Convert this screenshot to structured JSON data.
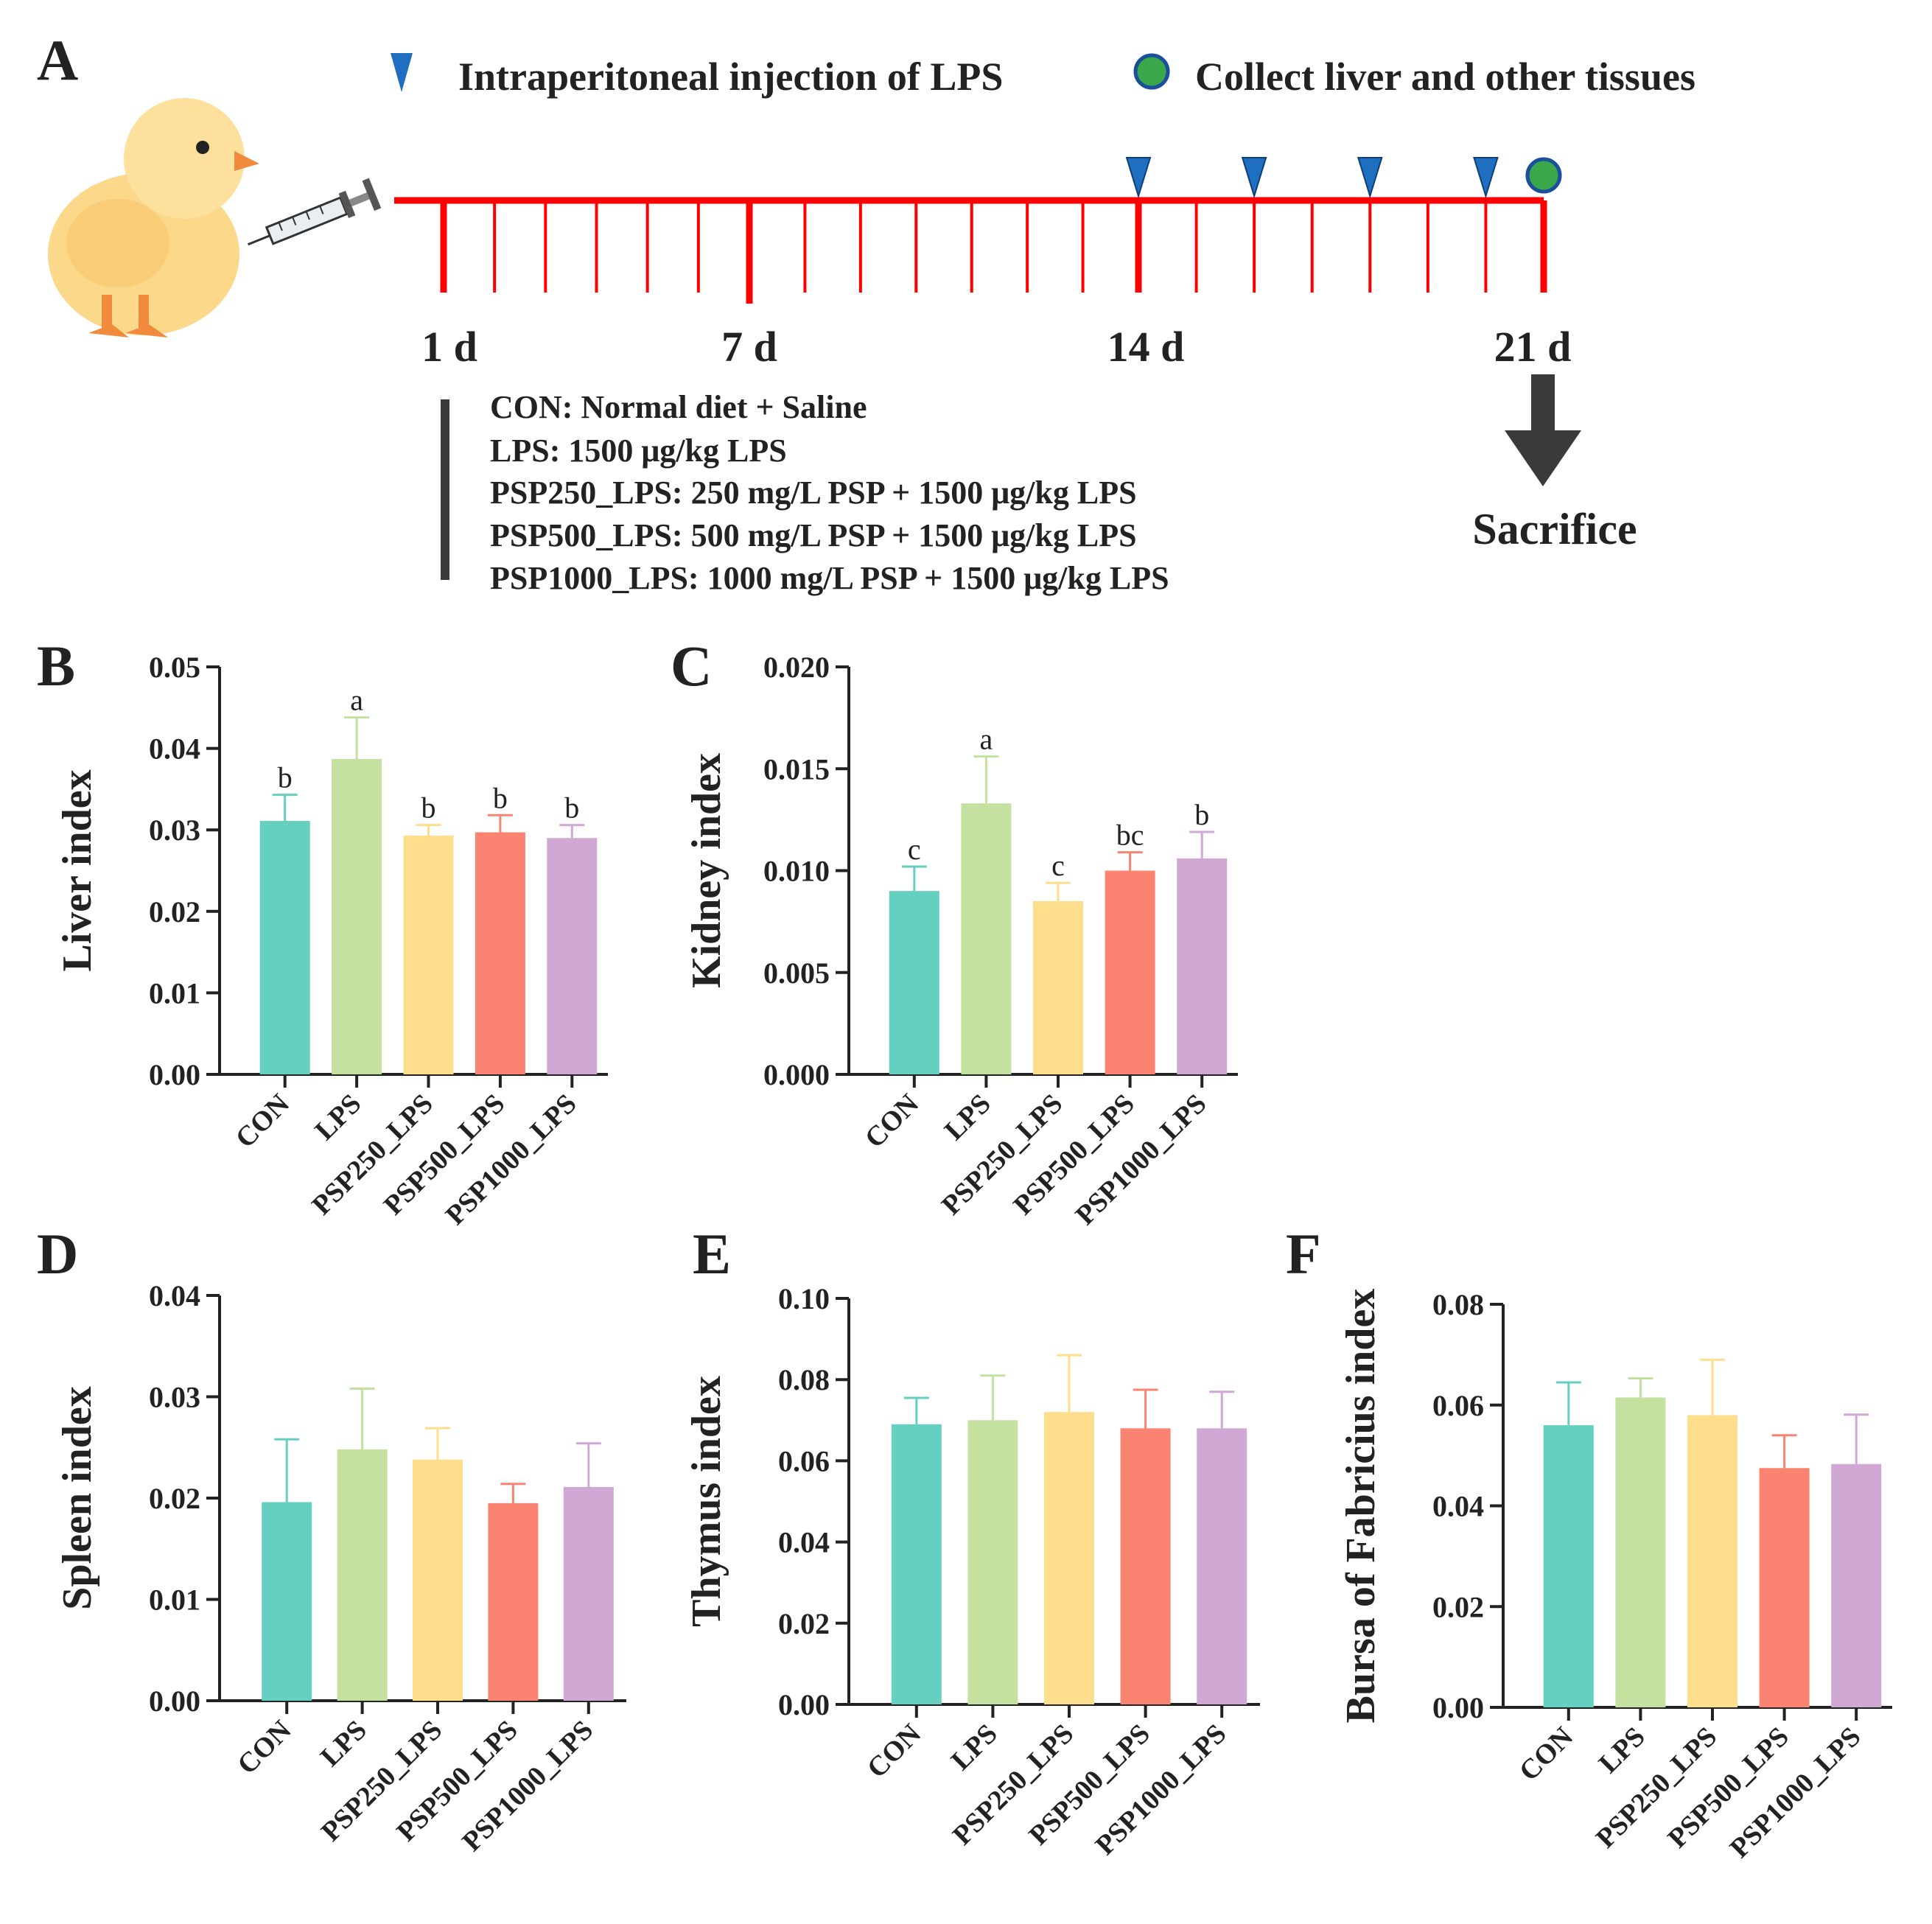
{
  "panel_a": {
    "label": "A",
    "legend": {
      "injection": "Intraperitoneal injection of LPS",
      "collect": "Collect liver and other tissues",
      "injection_icon": "blue-triangle-marker-icon",
      "collect_icon": "green-circle-marker-icon"
    },
    "timeline": {
      "day_labels": [
        "1 d",
        "7 d",
        "14 d",
        "21 d"
      ],
      "major_days": [
        1,
        7,
        14,
        21
      ],
      "start_day": 1,
      "end_day": 21,
      "injection_days": [
        14,
        16,
        18,
        20
      ],
      "collect_day": 21,
      "sacrifice_label": "Sacrifice"
    },
    "groups": [
      "CON: Normal diet + Saline",
      "LPS: 1500 μg/kg LPS",
      "PSP250_LPS: 250 mg/L PSP + 1500 μg/kg LPS",
      "PSP500_LPS: 500 mg/L PSP + 1500 μg/kg LPS",
      "PSP1000_LPS: 1000 mg/L PSP + 1500 μg/kg LPS"
    ],
    "icons": {
      "animal": "chick-icon",
      "tool": "syringe-icon"
    }
  },
  "colors": {
    "timeline": "#ff0000",
    "injection_marker": "#1f6fc0",
    "collect_marker": "#3aa84a",
    "arrow": "#3a3a3a",
    "text": "#222222",
    "bars": [
      "#65cfc0",
      "#c4e19f",
      "#fedd8d",
      "#fb8372",
      "#cfa9d3"
    ]
  },
  "chart_data": [
    {
      "id": "B",
      "type": "bar",
      "title": "",
      "xlabel": "",
      "ylabel": "Liver index",
      "categories": [
        "CON",
        "LPS",
        "PSP250_LPS",
        "PSP500_LPS",
        "PSP1000_LPS"
      ],
      "values": [
        0.0311,
        0.0387,
        0.0293,
        0.0297,
        0.029
      ],
      "errors": [
        0.0032,
        0.0051,
        0.0013,
        0.0021,
        0.0016
      ],
      "significance": [
        "b",
        "a",
        "b",
        "b",
        "b"
      ],
      "ylim": [
        0,
        0.05
      ],
      "yticks": [
        "0.00",
        "0.01",
        "0.02",
        "0.03",
        "0.04",
        "0.05"
      ],
      "ytick_values": [
        0,
        0.01,
        0.02,
        0.03,
        0.04,
        0.05
      ]
    },
    {
      "id": "C",
      "type": "bar",
      "title": "",
      "xlabel": "",
      "ylabel": "Kidney index",
      "categories": [
        "CON",
        "LPS",
        "PSP250_LPS",
        "PSP500_LPS",
        "PSP1000_LPS"
      ],
      "values": [
        0.009,
        0.0133,
        0.0085,
        0.01,
        0.0106
      ],
      "errors": [
        0.0012,
        0.0023,
        0.0009,
        0.0009,
        0.0013
      ],
      "significance": [
        "c",
        "a",
        "c",
        "bc",
        "b"
      ],
      "ylim": [
        0,
        0.02
      ],
      "yticks": [
        "0.000",
        "0.005",
        "0.010",
        "0.015",
        "0.020"
      ],
      "ytick_values": [
        0,
        0.005,
        0.01,
        0.015,
        0.02
      ]
    },
    {
      "id": "D",
      "type": "bar",
      "title": "",
      "xlabel": "",
      "ylabel": "Spleen index",
      "categories": [
        "CON",
        "LPS",
        "PSP250_LPS",
        "PSP500_LPS",
        "PSP1000_LPS"
      ],
      "values": [
        0.0196,
        0.0248,
        0.0238,
        0.0195,
        0.0211
      ],
      "errors": [
        0.0062,
        0.006,
        0.0031,
        0.0019,
        0.0043
      ],
      "significance": [
        "",
        "",
        "",
        "",
        ""
      ],
      "ylim": [
        0,
        0.04
      ],
      "yticks": [
        "0.00",
        "0.01",
        "0.02",
        "0.03",
        "0.04"
      ],
      "ytick_values": [
        0,
        0.01,
        0.02,
        0.03,
        0.04
      ]
    },
    {
      "id": "E",
      "type": "bar",
      "title": "",
      "xlabel": "",
      "ylabel": "Thymus index",
      "categories": [
        "CON",
        "LPS",
        "PSP250_LPS",
        "PSP500_LPS",
        "PSP1000_LPS"
      ],
      "values": [
        0.069,
        0.07,
        0.072,
        0.068,
        0.068
      ],
      "errors": [
        0.0065,
        0.011,
        0.014,
        0.0095,
        0.009
      ],
      "significance": [
        "",
        "",
        "",
        "",
        ""
      ],
      "ylim": [
        0,
        0.1
      ],
      "yticks": [
        "0.00",
        "0.02",
        "0.04",
        "0.06",
        "0.08",
        "0.10"
      ],
      "ytick_values": [
        0,
        0.02,
        0.04,
        0.06,
        0.08,
        0.1
      ]
    },
    {
      "id": "F",
      "type": "bar",
      "title": "",
      "xlabel": "",
      "ylabel": "Bursa of Fabricius index",
      "categories": [
        "CON",
        "LPS",
        "PSP250_LPS",
        "PSP500_LPS",
        "PSP1000_LPS"
      ],
      "values": [
        0.056,
        0.0615,
        0.058,
        0.0475,
        0.0483
      ],
      "errors": [
        0.0085,
        0.0038,
        0.011,
        0.0065,
        0.0098
      ],
      "significance": [
        "",
        "",
        "",
        "",
        ""
      ],
      "ylim": [
        0,
        0.08
      ],
      "yticks": [
        "0.00",
        "0.02",
        "0.04",
        "0.06",
        "0.08"
      ],
      "ytick_values": [
        0,
        0.02,
        0.04,
        0.06,
        0.08
      ]
    }
  ]
}
